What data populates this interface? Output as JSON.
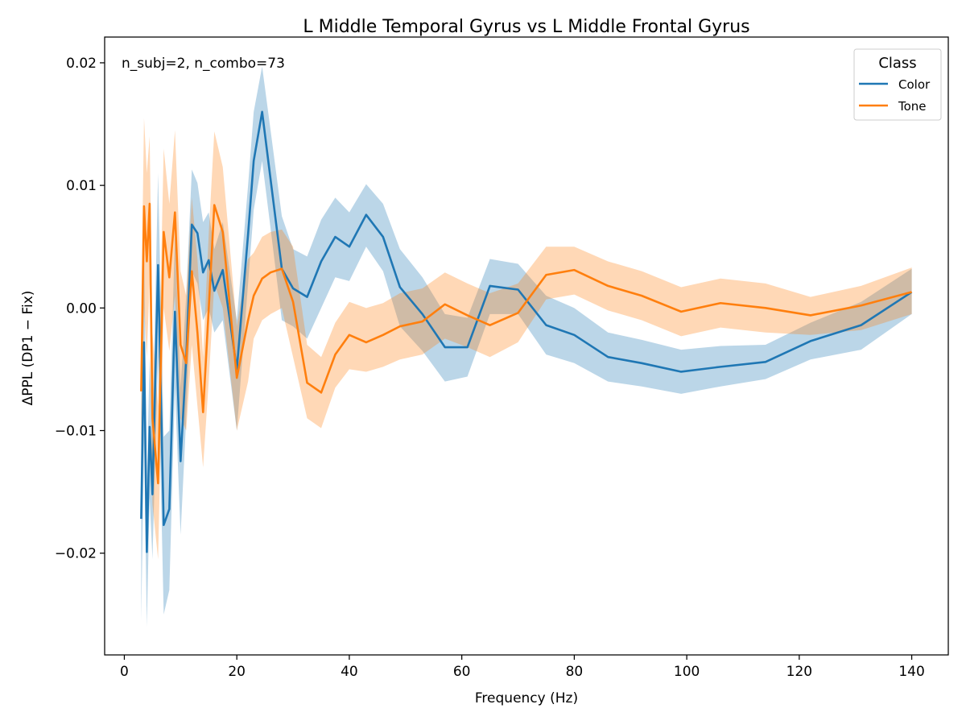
{
  "chart_data": {
    "type": "line",
    "title": "L Middle Temporal Gyrus vs L Middle Frontal Gyrus",
    "xlabel": "Frequency (Hz)",
    "ylabel": "ΔPPL (DP1 − Fix)",
    "annotation": "n_subj=2, n_combo=73",
    "xlim": [
      -3.5,
      146.5
    ],
    "ylim": [
      -0.0283,
      0.0221
    ],
    "xticks": [
      0,
      20,
      40,
      60,
      80,
      100,
      120,
      140
    ],
    "xtick_labels": [
      "0",
      "20",
      "40",
      "60",
      "80",
      "100",
      "120",
      "140"
    ],
    "yticks": [
      -0.02,
      -0.01,
      0.0,
      0.01,
      0.02
    ],
    "ytick_labels": [
      "−0.02",
      "−0.01",
      "0.00",
      "0.01",
      "0.02"
    ],
    "legend": {
      "title": "Class",
      "position": "top-right"
    },
    "grid": false,
    "x": [
      3.0,
      3.5,
      4.0,
      4.5,
      5.0,
      6.0,
      7.0,
      8.0,
      9.0,
      10.0,
      11.0,
      12.0,
      13.0,
      14.0,
      15.0,
      16.0,
      17.5,
      20.0,
      22.0,
      23.0,
      24.5,
      26.0,
      28.0,
      30.0,
      32.5,
      35.0,
      37.5,
      40.0,
      43.0,
      46.0,
      49.0,
      53.0,
      57.0,
      61.0,
      65.0,
      70.0,
      75.0,
      80.0,
      86.0,
      92.0,
      99.0,
      106.0,
      114.0,
      122.0,
      131.0,
      140.0
    ],
    "series": [
      {
        "name": "Color",
        "color": "#1f77b4",
        "band_color": "#1f77b4",
        "band_opacity": 0.3,
        "values": [
          -0.0172,
          -0.0028,
          -0.0199,
          -0.0097,
          -0.0152,
          0.0035,
          -0.0177,
          -0.0164,
          -0.0003,
          -0.0125,
          -0.0041,
          0.0068,
          0.0061,
          0.0029,
          0.0039,
          0.0014,
          0.0031,
          -0.005,
          0.006,
          0.012,
          0.016,
          0.0105,
          0.0032,
          0.0016,
          0.0009,
          0.0038,
          0.0058,
          0.005,
          0.0076,
          0.0058,
          0.0017,
          -0.0005,
          -0.0032,
          -0.0032,
          0.0018,
          0.0015,
          -0.0014,
          -0.0022,
          -0.004,
          -0.0045,
          -0.0052,
          -0.0048,
          -0.0044,
          -0.0027,
          -0.0014,
          0.0013
        ],
        "lower": [
          -0.0255,
          -0.011,
          -0.026,
          -0.0155,
          -0.0205,
          -0.004,
          -0.025,
          -0.023,
          -0.0065,
          -0.0185,
          -0.009,
          0.003,
          0.002,
          -0.001,
          0.0,
          -0.002,
          -0.001,
          -0.01,
          0.002,
          0.008,
          0.012,
          0.0065,
          -0.001,
          -0.0015,
          -0.0025,
          0.0,
          0.0025,
          0.0022,
          0.005,
          0.003,
          -0.0015,
          -0.0035,
          -0.006,
          -0.0056,
          -0.0005,
          -0.0005,
          -0.0038,
          -0.0045,
          -0.006,
          -0.0064,
          -0.007,
          -0.0064,
          -0.0058,
          -0.0042,
          -0.0034,
          -0.0005
        ],
        "upper": [
          -0.009,
          0.0055,
          -0.014,
          -0.004,
          -0.01,
          0.011,
          -0.0105,
          -0.01,
          0.006,
          -0.0065,
          0.001,
          0.0113,
          0.0102,
          0.007,
          0.0078,
          0.0048,
          0.007,
          -0.001,
          0.01,
          0.016,
          0.0197,
          0.0145,
          0.0075,
          0.0048,
          0.0042,
          0.0072,
          0.009,
          0.0078,
          0.0101,
          0.0085,
          0.0048,
          0.0025,
          -0.0005,
          -0.0008,
          0.004,
          0.0036,
          0.001,
          0.0,
          -0.002,
          -0.0026,
          -0.0034,
          -0.0031,
          -0.003,
          -0.0012,
          0.0005,
          0.0032
        ]
      },
      {
        "name": "Tone",
        "color": "#ff7f0e",
        "band_color": "#ff7f0e",
        "band_opacity": 0.3,
        "values": [
          -0.0068,
          0.0083,
          0.0038,
          0.0085,
          -0.009,
          -0.0143,
          0.0062,
          0.0025,
          0.0078,
          -0.003,
          -0.0045,
          0.003,
          -0.002,
          -0.0085,
          -0.0001,
          0.0084,
          0.0062,
          -0.0057,
          -0.001,
          0.001,
          0.0024,
          0.0029,
          0.0032,
          0.0005,
          -0.0061,
          -0.0069,
          -0.0038,
          -0.0022,
          -0.0028,
          -0.0022,
          -0.0015,
          -0.0011,
          0.0003,
          -0.0006,
          -0.0014,
          -0.0004,
          0.0027,
          0.0031,
          0.0018,
          0.001,
          -0.0003,
          0.0004,
          0.0,
          -0.0006,
          0.0002,
          0.0013
        ],
        "lower": [
          -0.013,
          0.0,
          -0.004,
          0.002,
          -0.016,
          -0.0205,
          0.0,
          -0.0035,
          0.001,
          -0.009,
          -0.01,
          -0.003,
          -0.008,
          -0.013,
          -0.006,
          0.002,
          0.0,
          -0.01,
          -0.006,
          -0.0025,
          -0.001,
          -0.0005,
          0.0,
          -0.004,
          -0.009,
          -0.0098,
          -0.0065,
          -0.005,
          -0.0052,
          -0.0048,
          -0.0042,
          -0.0038,
          -0.0025,
          -0.0032,
          -0.004,
          -0.0028,
          0.0007,
          0.0011,
          -0.0002,
          -0.001,
          -0.0023,
          -0.0016,
          -0.002,
          -0.0022,
          -0.0018,
          -0.0005
        ],
        "upper": [
          -0.0005,
          0.0155,
          0.011,
          0.014,
          -0.002,
          -0.008,
          0.013,
          0.0085,
          0.0145,
          0.003,
          0.001,
          0.009,
          0.004,
          -0.004,
          0.006,
          0.0144,
          0.0115,
          -0.0015,
          0.004,
          0.0045,
          0.0058,
          0.0062,
          0.0064,
          0.005,
          -0.003,
          -0.004,
          -0.0012,
          0.0005,
          0.0,
          0.0004,
          0.0012,
          0.0016,
          0.0029,
          0.002,
          0.0012,
          0.002,
          0.005,
          0.005,
          0.0038,
          0.003,
          0.0017,
          0.0024,
          0.002,
          0.0009,
          0.0018,
          0.0033
        ]
      }
    ]
  }
}
